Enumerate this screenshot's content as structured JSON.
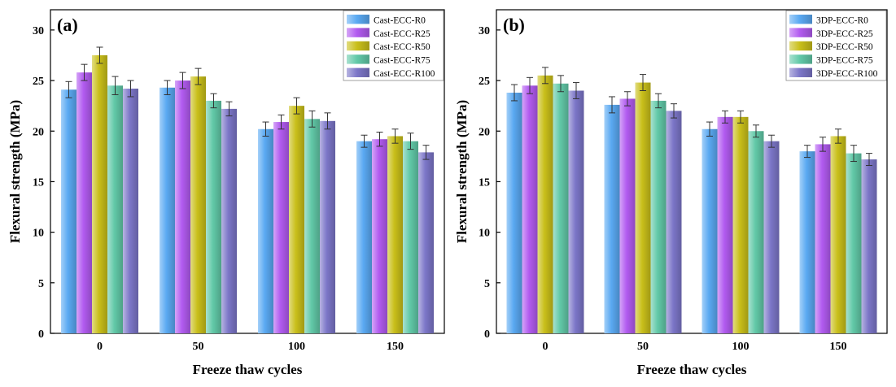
{
  "chart_data": [
    {
      "type": "bar",
      "panel_label": "(a)",
      "xlabel": "Freeze thaw cycles",
      "ylabel": "Flexural strength (MPa)",
      "categories": [
        "0",
        "50",
        "100",
        "150"
      ],
      "ylim": [
        0,
        32
      ],
      "yticks": [
        0,
        5,
        10,
        15,
        20,
        25,
        30
      ],
      "legend_position": "top-right",
      "grid": false,
      "series": [
        {
          "name": "Cast-ECC-R0",
          "color": "#5aa9f2",
          "values": [
            24.1,
            24.3,
            20.2,
            19.0
          ],
          "errors": [
            0.8,
            0.7,
            0.7,
            0.6
          ]
        },
        {
          "name": "Cast-ECC-R25",
          "color": "#b25bf0",
          "values": [
            25.8,
            25.0,
            20.9,
            19.2
          ],
          "errors": [
            0.8,
            0.8,
            0.7,
            0.7
          ]
        },
        {
          "name": "Cast-ECC-R50",
          "color": "#c9bf1a",
          "values": [
            27.5,
            25.4,
            22.5,
            19.5
          ],
          "errors": [
            0.8,
            0.8,
            0.8,
            0.7
          ]
        },
        {
          "name": "Cast-ECC-R75",
          "color": "#62c9a8",
          "values": [
            24.5,
            23.0,
            21.2,
            19.0
          ],
          "errors": [
            0.9,
            0.7,
            0.8,
            0.8
          ]
        },
        {
          "name": "Cast-ECC-R100",
          "color": "#7c76c8",
          "values": [
            24.2,
            22.2,
            21.0,
            17.9
          ],
          "errors": [
            0.8,
            0.7,
            0.8,
            0.7
          ]
        }
      ]
    },
    {
      "type": "bar",
      "panel_label": "(b)",
      "xlabel": "Freeze thaw cycles",
      "ylabel": "Flexural strength (MPa)",
      "categories": [
        "0",
        "50",
        "100",
        "150"
      ],
      "ylim": [
        0,
        32
      ],
      "yticks": [
        0,
        5,
        10,
        15,
        20,
        25,
        30
      ],
      "legend_position": "top-right",
      "grid": false,
      "series": [
        {
          "name": "3DP-ECC-R0",
          "color": "#5aa9f2",
          "values": [
            23.8,
            22.6,
            20.2,
            18.0
          ],
          "errors": [
            0.8,
            0.8,
            0.7,
            0.6
          ]
        },
        {
          "name": "3DP-ECC-R25",
          "color": "#b25bf0",
          "values": [
            24.5,
            23.2,
            21.4,
            18.7
          ],
          "errors": [
            0.8,
            0.7,
            0.6,
            0.7
          ]
        },
        {
          "name": "3DP-ECC-R50",
          "color": "#c9bf1a",
          "values": [
            25.5,
            24.8,
            21.4,
            19.5
          ],
          "errors": [
            0.8,
            0.8,
            0.6,
            0.7
          ]
        },
        {
          "name": "3DP-ECC-R75",
          "color": "#62c9a8",
          "values": [
            24.7,
            23.0,
            20.0,
            17.8
          ],
          "errors": [
            0.8,
            0.7,
            0.6,
            0.8
          ]
        },
        {
          "name": "3DP-ECC-R100",
          "color": "#7c76c8",
          "values": [
            24.0,
            22.0,
            19.0,
            17.2
          ],
          "errors": [
            0.8,
            0.7,
            0.6,
            0.6
          ]
        }
      ]
    }
  ]
}
